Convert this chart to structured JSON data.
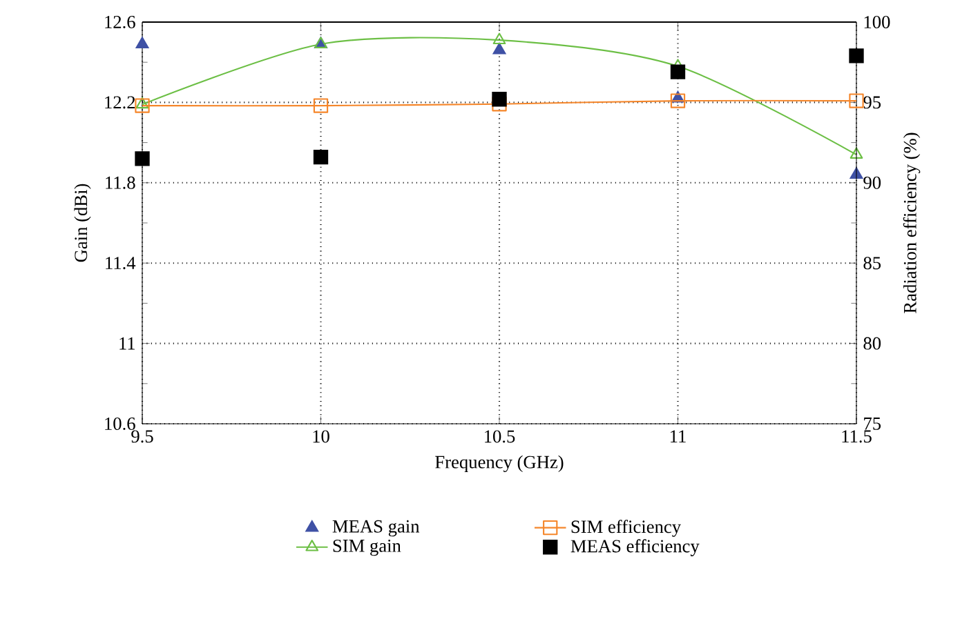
{
  "chart_data": {
    "type": "line",
    "xlabel": "Frequency (GHz)",
    "ylabel": "Gain (dBi)",
    "y2label": "Radiation efficiency (%)",
    "x": [
      9.5,
      10,
      10.5,
      11,
      11.5
    ],
    "series": [
      {
        "name": "MEAS gain",
        "type": "scatter",
        "marker": "triangle",
        "color": "#3f51a5",
        "values": [
          12.49,
          12.49,
          12.46,
          12.22,
          11.84
        ]
      },
      {
        "name": "SIM gain",
        "marker": "triangle",
        "color": "#6cbf45",
        "values": [
          12.19,
          12.49,
          12.51,
          12.38,
          11.94
        ]
      },
      {
        "name": "SIM efficiency",
        "marker": "square",
        "axis": "y2",
        "color": "#f5862a",
        "values": [
          94.8,
          94.8,
          94.9,
          95.1,
          95.1
        ]
      },
      {
        "name": "MEAS efficiency",
        "type": "scatter",
        "marker": "square",
        "axis": "y2",
        "color": "#000000",
        "values": [
          91.5,
          91.6,
          95.2,
          96.9,
          97.9
        ]
      }
    ],
    "xlim": [
      9.5,
      11.5
    ],
    "xticks": [
      9.5,
      10,
      10.5,
      11,
      11.5
    ],
    "ylim": [
      10.6,
      12.6
    ],
    "yticks": [
      10.6,
      11,
      11.4,
      11.8,
      12.2,
      12.6
    ],
    "y2lim": [
      75,
      100
    ],
    "y2ticks": [
      75,
      80,
      85,
      90,
      95,
      100
    ],
    "grid": true,
    "legend": "bottom"
  }
}
